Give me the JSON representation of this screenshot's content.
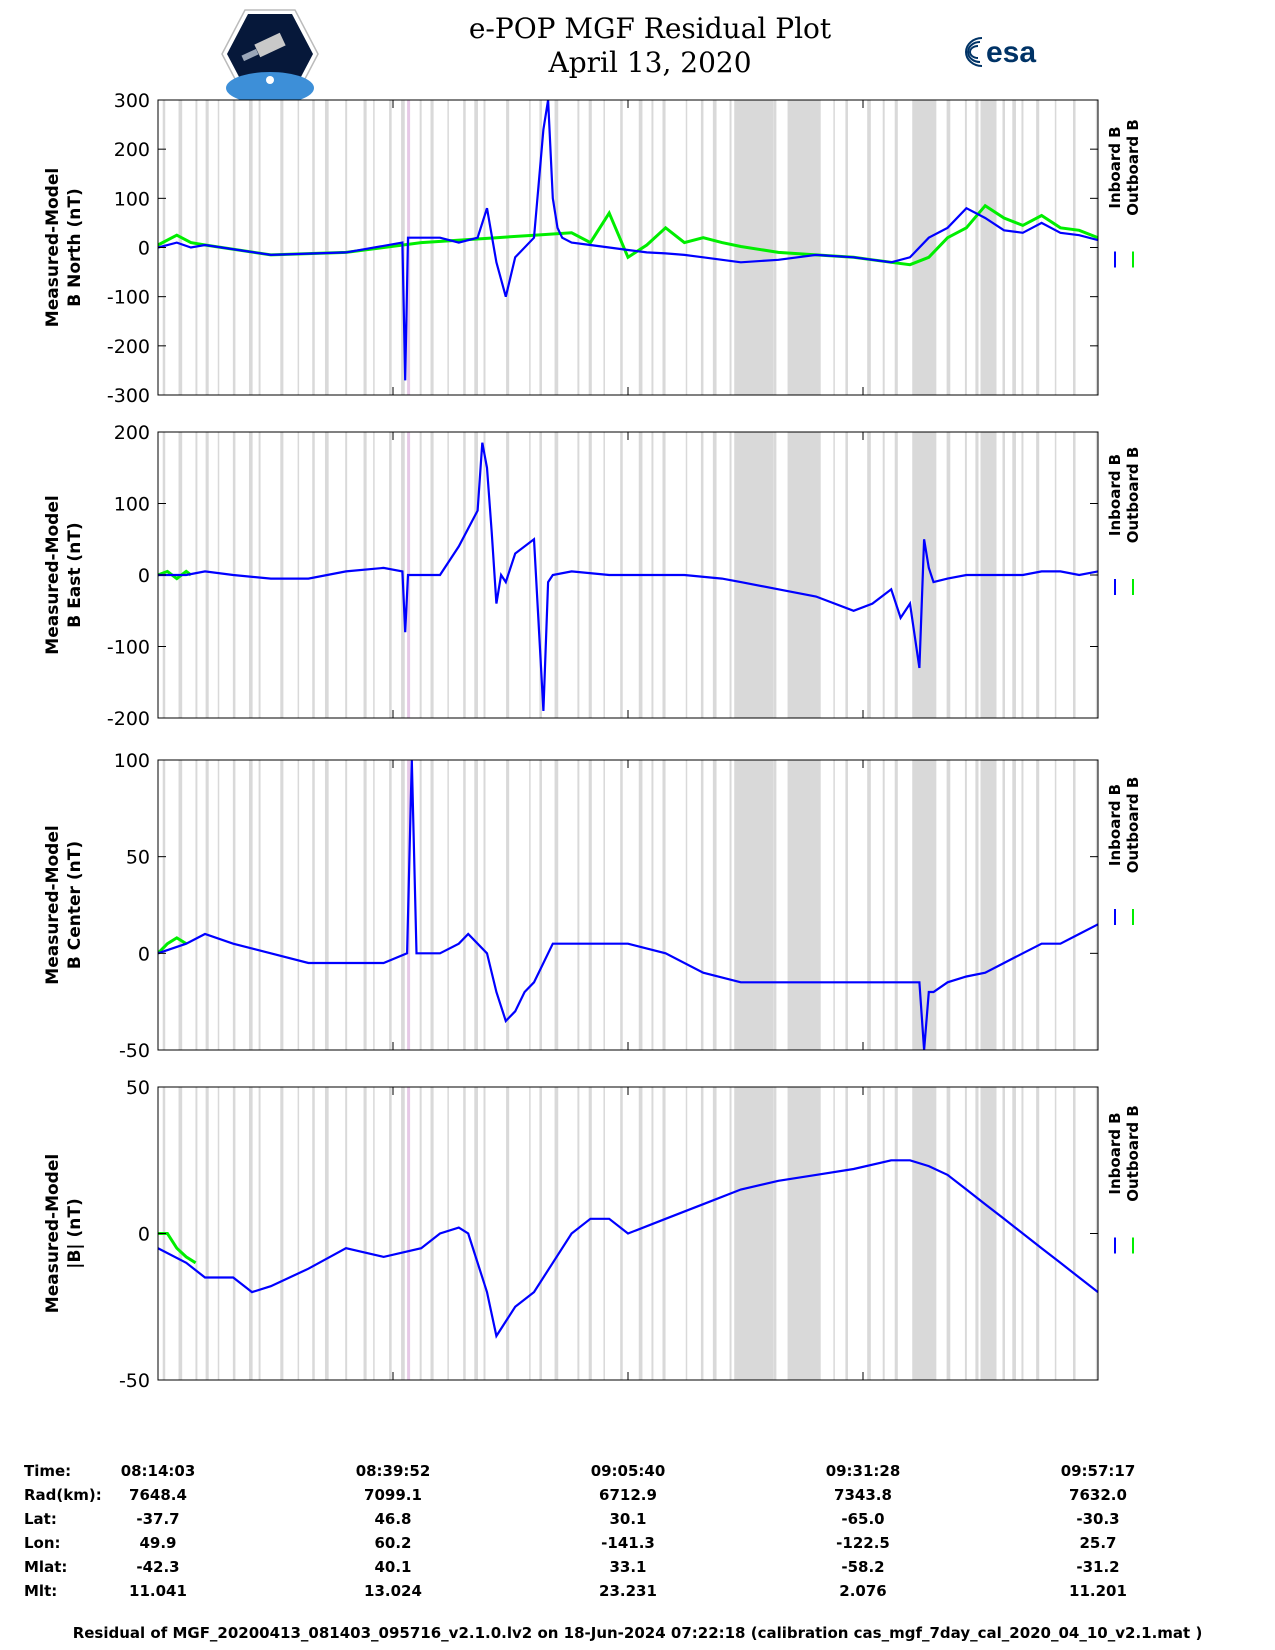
{
  "header": {
    "title_line1": "e-POP MGF Residual Plot",
    "title_line2": "April 13, 2020",
    "left_logo": "cassiope-mission-logo",
    "right_logo_text": "esa"
  },
  "legend": {
    "inboard": "Inboard B",
    "outboard": "Outboard B"
  },
  "colors": {
    "inboard": "#0000ff",
    "outboard": "#00ee00",
    "shade": "#d9d9d9",
    "marker": "#e6c9e6"
  },
  "chart_data": [
    {
      "type": "line",
      "ylabel": [
        "Measured-Model",
        "B North (nT)"
      ],
      "ylim": [
        -300,
        300
      ],
      "yticks": [
        -300,
        -200,
        -100,
        0,
        100,
        200,
        300
      ],
      "xlim": [
        0,
        100
      ],
      "grid": false,
      "series": [
        {
          "name": "Outboard B",
          "x": [
            0,
            2,
            3.5,
            5,
            12,
            20,
            28,
            36,
            40,
            44,
            46,
            48,
            50,
            52,
            54,
            56,
            58,
            60,
            62,
            66,
            70,
            74,
            76,
            78,
            80,
            82,
            84,
            86,
            88,
            90,
            92,
            94,
            96,
            98,
            100
          ],
          "values": [
            5,
            25,
            10,
            5,
            -15,
            -10,
            10,
            20,
            25,
            30,
            10,
            70,
            -20,
            5,
            40,
            10,
            20,
            10,
            2,
            -10,
            -15,
            -20,
            -25,
            -30,
            -35,
            -20,
            20,
            40,
            85,
            60,
            45,
            65,
            40,
            35,
            20
          ]
        },
        {
          "name": "Inboard B",
          "x": [
            0,
            2,
            3.5,
            5,
            12,
            20,
            26,
            26.3,
            26.6,
            28,
            30,
            32,
            34,
            35,
            36,
            37,
            38,
            40,
            41,
            41.5,
            42,
            42.5,
            43,
            44,
            46,
            48,
            50,
            52,
            54,
            56,
            58,
            60,
            62,
            66,
            70,
            74,
            76,
            78,
            80,
            82,
            84,
            86,
            88,
            90,
            92,
            94,
            96,
            98,
            100
          ],
          "values": [
            0,
            10,
            0,
            5,
            -15,
            -10,
            10,
            -270,
            20,
            20,
            20,
            10,
            20,
            80,
            -30,
            -100,
            -20,
            20,
            240,
            300,
            100,
            40,
            20,
            10,
            5,
            0,
            -5,
            -10,
            -12,
            -15,
            -20,
            -25,
            -30,
            -25,
            -15,
            -20,
            -25,
            -30,
            -20,
            20,
            40,
            80,
            60,
            35,
            30,
            50,
            30,
            25,
            15
          ]
        }
      ]
    },
    {
      "type": "line",
      "ylabel": [
        "Measured-Model",
        "B East (nT)"
      ],
      "ylim": [
        -200,
        200
      ],
      "yticks": [
        -200,
        -100,
        0,
        100,
        200
      ],
      "xlim": [
        0,
        100
      ],
      "grid": false,
      "series": [
        {
          "name": "Outboard B",
          "x": [
            0,
            1,
            2,
            3,
            3.5
          ],
          "values": [
            0,
            5,
            -5,
            5,
            0
          ]
        },
        {
          "name": "Inboard B",
          "x": [
            0,
            3,
            5,
            8,
            12,
            16,
            20,
            24,
            26,
            26.3,
            26.6,
            30,
            32,
            34,
            34.5,
            35,
            35.5,
            36,
            36.5,
            37,
            38,
            40,
            41,
            41.5,
            42,
            44,
            48,
            52,
            56,
            60,
            62,
            66,
            70,
            74,
            76,
            78,
            79,
            80,
            81,
            81.5,
            82,
            82.5,
            84,
            86,
            88,
            90,
            92,
            94,
            96,
            98,
            100
          ],
          "values": [
            0,
            0,
            5,
            0,
            -5,
            -5,
            5,
            10,
            5,
            -80,
            0,
            0,
            40,
            90,
            185,
            150,
            60,
            -40,
            0,
            -10,
            30,
            50,
            -190,
            -10,
            0,
            5,
            0,
            0,
            0,
            -5,
            -10,
            -20,
            -30,
            -50,
            -40,
            -20,
            -60,
            -40,
            -130,
            50,
            10,
            -10,
            -5,
            0,
            0,
            0,
            0,
            5,
            5,
            0,
            5
          ]
        }
      ]
    },
    {
      "type": "line",
      "ylabel": [
        "Measured-Model",
        "B Center (nT)"
      ],
      "ylim": [
        -50,
        100
      ],
      "yticks": [
        -50,
        0,
        50,
        100
      ],
      "xlim": [
        0,
        100
      ],
      "grid": false,
      "series": [
        {
          "name": "Outboard B",
          "x": [
            0,
            1,
            2,
            3
          ],
          "values": [
            0,
            5,
            8,
            5
          ]
        },
        {
          "name": "Inboard B",
          "x": [
            0,
            3,
            5,
            8,
            12,
            16,
            20,
            24,
            26.5,
            27,
            27.5,
            30,
            32,
            33,
            35,
            36,
            37,
            38,
            39,
            40,
            42,
            46,
            50,
            54,
            58,
            62,
            66,
            70,
            74,
            78,
            81,
            81.5,
            82,
            82.5,
            84,
            86,
            88,
            90,
            92,
            94,
            96,
            98,
            100
          ],
          "values": [
            0,
            5,
            10,
            5,
            0,
            -5,
            -5,
            -5,
            0,
            100,
            0,
            0,
            5,
            10,
            0,
            -20,
            -35,
            -30,
            -20,
            -15,
            5,
            5,
            5,
            0,
            -10,
            -15,
            -15,
            -15,
            -15,
            -15,
            -15,
            -50,
            -20,
            -20,
            -15,
            -12,
            -10,
            -5,
            0,
            5,
            5,
            10,
            15
          ]
        }
      ]
    },
    {
      "type": "line",
      "ylabel": [
        "Measured-Model",
        "|B| (nT)"
      ],
      "ylim": [
        -50,
        50
      ],
      "yticks": [
        -50,
        0,
        50
      ],
      "xlim": [
        0,
        100
      ],
      "grid": false,
      "series": [
        {
          "name": "Outboard B",
          "x": [
            0,
            1,
            2,
            3,
            4
          ],
          "values": [
            0,
            0,
            -5,
            -8,
            -10
          ]
        },
        {
          "name": "Inboard B",
          "x": [
            0,
            3,
            5,
            8,
            10,
            12,
            16,
            20,
            24,
            28,
            30,
            32,
            33,
            35,
            36,
            37,
            38,
            40,
            42,
            44,
            46,
            48,
            50,
            54,
            58,
            62,
            66,
            70,
            74,
            78,
            80,
            82,
            84,
            86,
            88,
            90,
            92,
            94,
            96,
            98,
            100
          ],
          "values": [
            -5,
            -10,
            -15,
            -15,
            -20,
            -18,
            -12,
            -5,
            -8,
            -5,
            0,
            2,
            0,
            -20,
            -35,
            -30,
            -25,
            -20,
            -10,
            0,
            5,
            5,
            0,
            5,
            10,
            15,
            18,
            20,
            22,
            25,
            25,
            23,
            20,
            15,
            10,
            5,
            0,
            -5,
            -10,
            -15,
            -20
          ]
        }
      ]
    }
  ],
  "footer": {
    "labels": [
      "Time:",
      "Rad(km):",
      "Lat:",
      "Lon:",
      "Mlat:",
      "Mlt:"
    ],
    "columns": [
      [
        "08:14:03",
        "7648.4",
        "-37.7",
        "49.9",
        "-42.3",
        "11.041"
      ],
      [
        "08:39:52",
        "7099.1",
        "46.8",
        "60.2",
        "40.1",
        "13.024"
      ],
      [
        "09:05:40",
        "6712.9",
        "30.1",
        "-141.3",
        "33.1",
        "23.231"
      ],
      [
        "09:31:28",
        "7343.8",
        "-65.0",
        "-122.5",
        "-58.2",
        "2.076"
      ],
      [
        "09:57:17",
        "7632.0",
        "-30.3",
        "25.7",
        "-31.2",
        "11.201"
      ]
    ],
    "note": "Residual of MGF_20200413_081403_095716_v2.1.0.lv2 on 18-Jun-2024 07:22:18 (calibration cas_mgf_7day_cal_2020_04_10_v2.1.mat )"
  }
}
